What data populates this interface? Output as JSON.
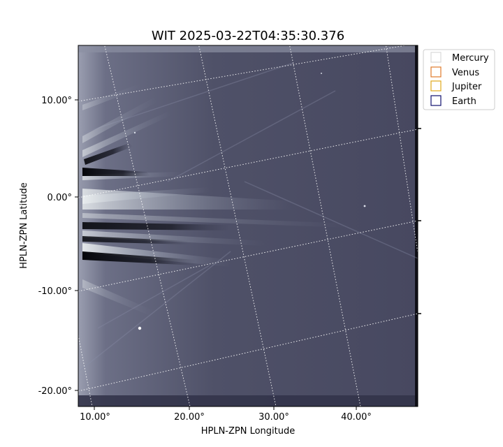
{
  "figure": {
    "title": "WIT 2025-03-22T04:35:30.376",
    "xlabel": "HPLN-ZPN Longitude",
    "ylabel": "HPLN-ZPN Latitude",
    "x_ticks": [
      "10.00°",
      "20.00°",
      "30.00°",
      "40.00°"
    ],
    "y_ticks": [
      "10.00°",
      "0.00°",
      "-10.00°",
      "-20.00°"
    ],
    "grid": "dotted white coordinate grid",
    "colormap": "grayscale-blue (coronal white-light image)"
  },
  "legend": {
    "placement": "top-right outside axes",
    "items": [
      {
        "label": "Mercury",
        "color": "#d8d8d8"
      },
      {
        "label": "Venus",
        "color": "#e07a2a"
      },
      {
        "label": "Jupiter",
        "color": "#e0a81a"
      },
      {
        "label": "Earth",
        "color": "#10106e"
      }
    ]
  },
  "colors": {
    "background": "#4a4b62",
    "grid": "#ffffff",
    "streamer": "#e8eef2"
  }
}
